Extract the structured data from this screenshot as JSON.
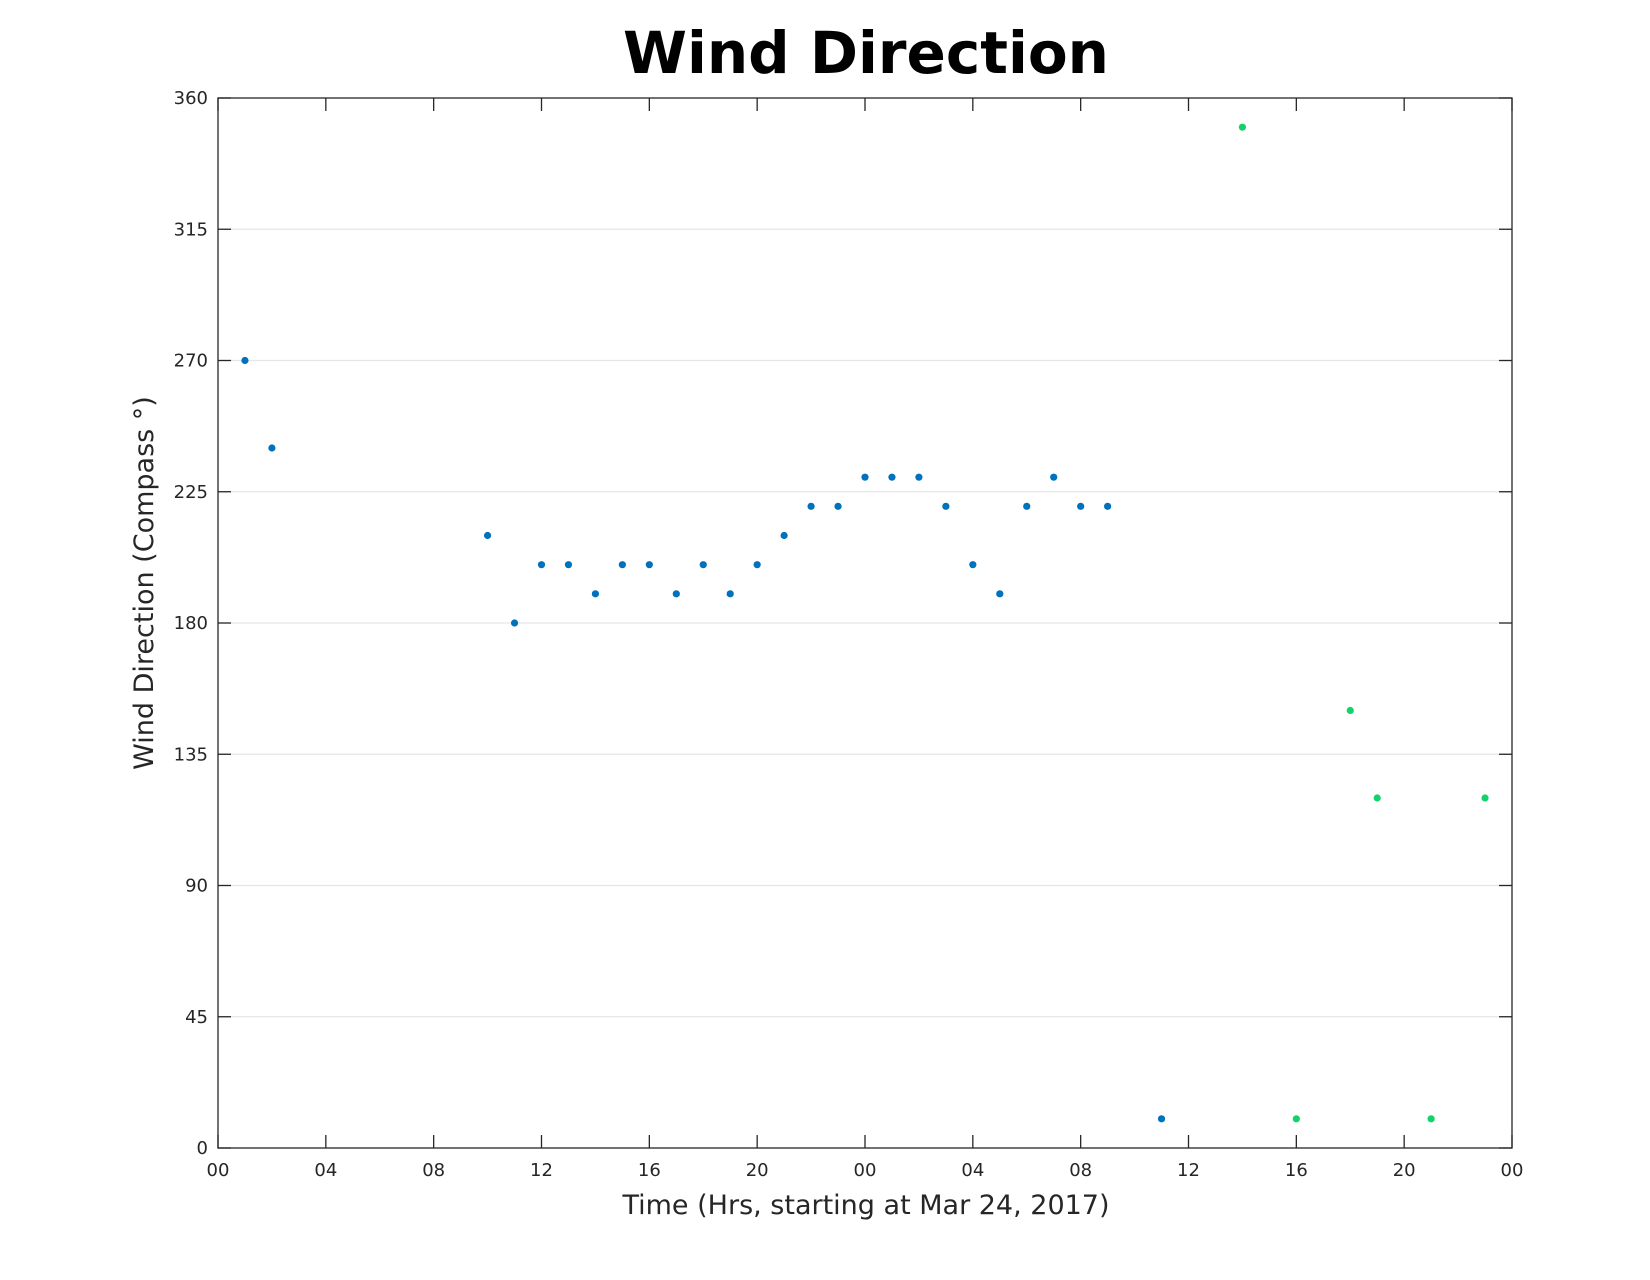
{
  "chart_data": {
    "type": "scatter",
    "title": "Wind Direction",
    "xlabel": "Time (Hrs, starting at Mar 24, 2017)",
    "ylabel": "Wind Direction (Compass °)",
    "x_unit": "hours since Mar 24, 2017 00:00",
    "xlim": [
      0,
      48
    ],
    "ylim": [
      0,
      360
    ],
    "x_ticks": [
      0,
      4,
      8,
      12,
      16,
      20,
      24,
      28,
      32,
      36,
      40,
      44,
      48
    ],
    "x_tick_labels": [
      "00",
      "04",
      "08",
      "12",
      "16",
      "20",
      "00",
      "04",
      "08",
      "12",
      "16",
      "20",
      "00"
    ],
    "y_ticks": [
      0,
      45,
      90,
      135,
      180,
      225,
      270,
      315,
      360
    ],
    "y_tick_labels": [
      "0",
      "45",
      "90",
      "135",
      "180",
      "225",
      "270",
      "315",
      "360"
    ],
    "grid": {
      "horizontal": true,
      "vertical": false
    },
    "colors": {
      "series_blue": "#0072BD",
      "series_green": "#12D36B",
      "grid": "#e6e6e6",
      "axis": "#262626"
    },
    "series": [
      {
        "color": "#0072BD",
        "x": [
          1,
          2,
          10,
          11,
          12,
          13,
          14,
          15,
          16,
          17,
          18,
          19,
          20,
          21,
          22,
          23,
          24,
          25,
          26,
          27,
          28,
          29,
          30,
          31,
          32,
          33,
          35
        ],
        "y": [
          270,
          240,
          210,
          180,
          200,
          200,
          190,
          200,
          200,
          190,
          200,
          190,
          200,
          210,
          220,
          220,
          230,
          230,
          230,
          220,
          200,
          190,
          220,
          230,
          220,
          220,
          10
        ]
      },
      {
        "color": "#12D36B",
        "x": [
          38,
          40,
          42,
          43,
          45,
          47
        ],
        "y": [
          350,
          10,
          150,
          120,
          10,
          120
        ]
      }
    ]
  }
}
